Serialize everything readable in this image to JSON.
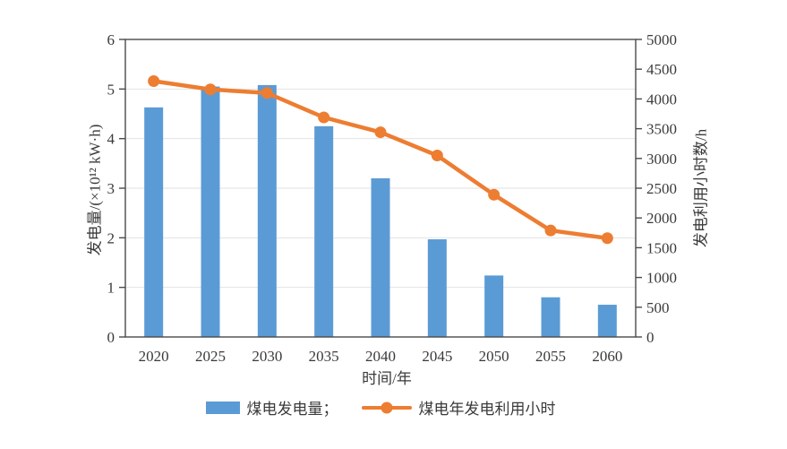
{
  "figure": {
    "background": "#ffffff"
  },
  "chart_data": {
    "type": "bar",
    "subtype": "bar-line-combo",
    "title": "",
    "categories": [
      "2020",
      "2025",
      "2030",
      "2035",
      "2040",
      "2045",
      "2050",
      "2055",
      "2060"
    ],
    "series": [
      {
        "name": "煤电发电量",
        "type": "bar",
        "axis": "left",
        "color": "#5B9BD5",
        "values": [
          4.63,
          5.05,
          5.08,
          4.25,
          3.2,
          1.97,
          1.24,
          0.8,
          0.65
        ]
      },
      {
        "name": "煤电年发电利用小时",
        "type": "line",
        "axis": "right",
        "color": "#ED7D31",
        "values": [
          4300,
          4160,
          4100,
          3690,
          3440,
          3050,
          2390,
          1790,
          1660
        ]
      }
    ],
    "left_axis": {
      "label": "发电量/(×10¹² kW·h)",
      "min": 0,
      "max": 6,
      "step": 1,
      "ticks": [
        "0",
        "1",
        "2",
        "3",
        "4",
        "5",
        "6"
      ]
    },
    "right_axis": {
      "label": "发电利用小时数/h",
      "min": 0,
      "max": 5000,
      "step": 500,
      "ticks": [
        "0",
        "500",
        "1000",
        "1500",
        "2000",
        "2500",
        "3000",
        "3500",
        "4000",
        "4500",
        "5000"
      ]
    },
    "x_axis": {
      "label": "时间/年"
    },
    "legend": {
      "position": "bottom",
      "items": [
        {
          "label": "煤电发电量；",
          "swatch": "bar"
        },
        {
          "label": "煤电年发电利用小时",
          "swatch": "line-marker"
        }
      ]
    },
    "grid": "horizontal",
    "colors": {
      "bar": "#5B9BD5",
      "line": "#ED7D31",
      "grid": "#E2E2E2",
      "axis": "#4A4A4A",
      "text": "#3A3A3A"
    }
  }
}
